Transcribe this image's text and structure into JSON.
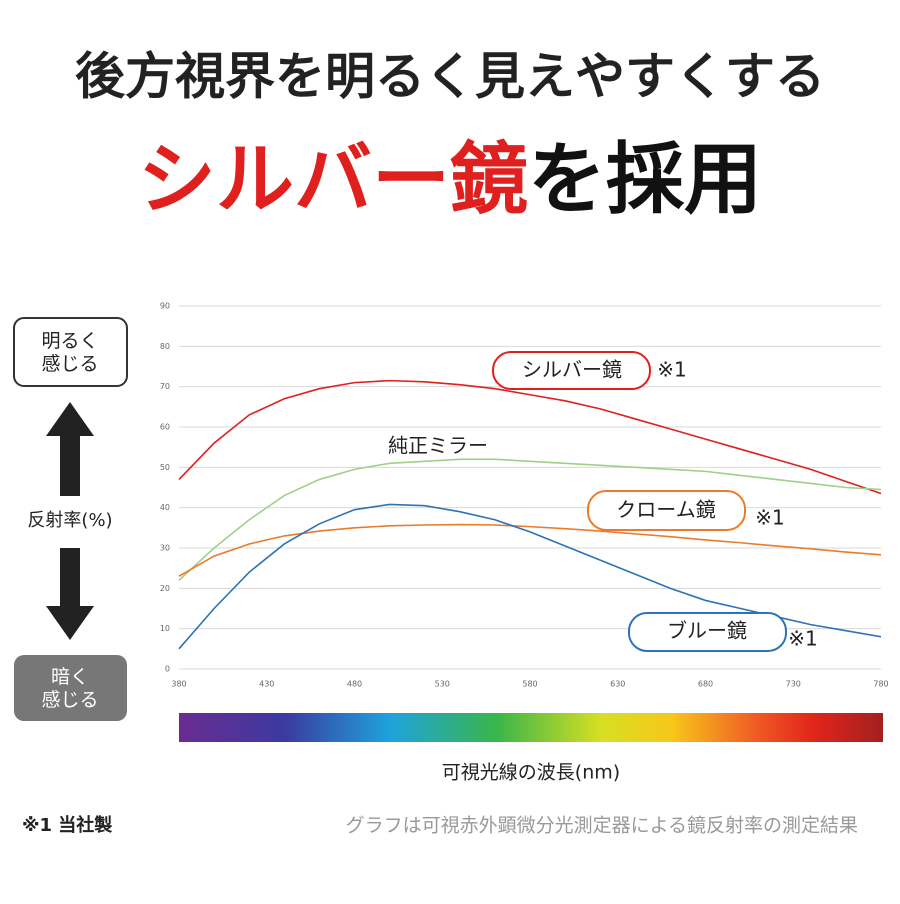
{
  "headline": {
    "line1": "後方視界を明るく見えやすくする",
    "line2_red": "シルバー鏡",
    "line2_black": "を採用"
  },
  "side": {
    "bright": "明るく\n感じる",
    "axis_label": "反射率(%)",
    "dark": "暗く\n感じる"
  },
  "chart_data": {
    "type": "line",
    "x": [
      380,
      400,
      420,
      440,
      460,
      480,
      500,
      520,
      540,
      560,
      580,
      600,
      620,
      640,
      660,
      680,
      700,
      720,
      740,
      760,
      780
    ],
    "xlim": [
      380,
      780
    ],
    "xticks": [
      380,
      430,
      480,
      530,
      580,
      630,
      680,
      730,
      780
    ],
    "ylim": [
      0,
      90
    ],
    "yticks": [
      0,
      10,
      20,
      30,
      40,
      50,
      60,
      70,
      80,
      90
    ],
    "grid": true,
    "x_label": "可視光線の波長(nm)",
    "series": [
      {
        "name": "シルバー鏡",
        "note": "※1",
        "color": "#e0201e",
        "values": [
          47,
          56,
          63,
          67,
          69.5,
          71,
          71.5,
          71.2,
          70.5,
          69.5,
          68,
          66.5,
          64.5,
          62,
          59.5,
          57,
          54.5,
          52,
          49.5,
          46.5,
          43.5
        ]
      },
      {
        "name": "純正ミラー",
        "color": "#9fd08a",
        "values": [
          22,
          30,
          37,
          43,
          47,
          49.5,
          51,
          51.5,
          52,
          52,
          51.5,
          51,
          50.5,
          50,
          49.5,
          49,
          48,
          47,
          46,
          45,
          44.5
        ]
      },
      {
        "name": "クローム鏡",
        "note": "※1",
        "color": "#ea7b2c",
        "values": [
          23,
          28,
          31,
          33,
          34.2,
          35,
          35.5,
          35.7,
          35.8,
          35.7,
          35.3,
          34.8,
          34.2,
          33.5,
          32.8,
          32,
          31.3,
          30.5,
          29.8,
          29,
          28.3
        ]
      },
      {
        "name": "ブルー鏡",
        "note": "※1",
        "color": "#2d72b8",
        "values": [
          5,
          15,
          24,
          31,
          36,
          39.5,
          40.8,
          40.5,
          39,
          37,
          34,
          30.5,
          27,
          23.5,
          20,
          17,
          15,
          13,
          11,
          9.5,
          8
        ]
      }
    ]
  },
  "footer": {
    "note": "※1 当社製",
    "caption": "グラフは可視赤外顕微分光測定器による鏡反射率の測定結果"
  }
}
